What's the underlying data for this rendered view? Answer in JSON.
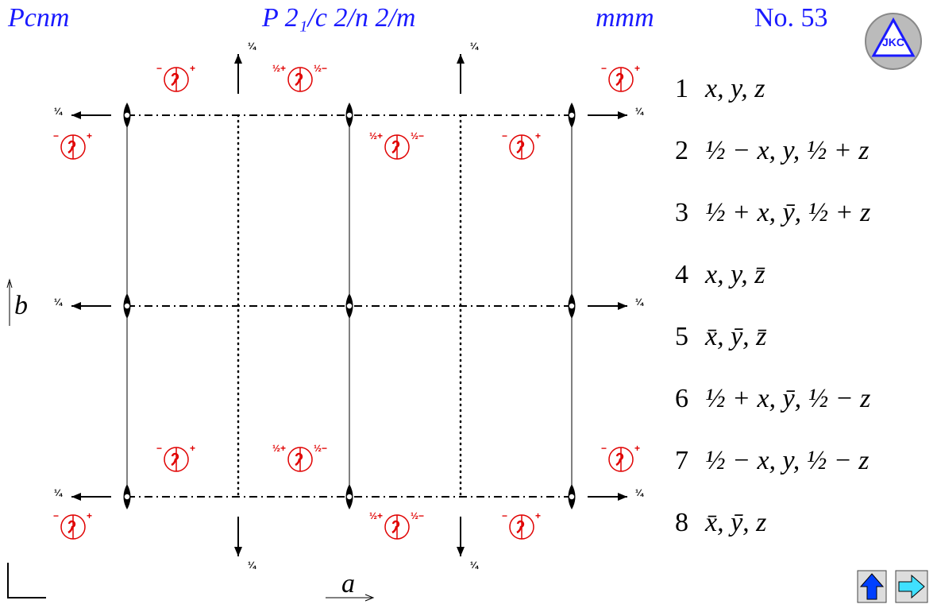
{
  "header": {
    "symbol": "Pcnm",
    "full_symbol": "P 2₁/c 2/n 2/m",
    "point_group": "mmm",
    "number": "No. 53",
    "logo": "JKC"
  },
  "diagram": {
    "axis_a": "a",
    "axis_b": "b",
    "height": "¼",
    "minus": "−",
    "plus": "+",
    "half_plus": "½+",
    "half_minus": "½−"
  },
  "positions": [
    {
      "number": "1",
      "coords": "x, y, z"
    },
    {
      "number": "2",
      "coords": "½ − x, y, ½ + z"
    },
    {
      "number": "3",
      "coords": "½ + x, ȳ, ½ + z"
    },
    {
      "number": "4",
      "coords": "x, y, z̄"
    },
    {
      "number": "5",
      "coords": "x̄, ȳ, z̄"
    },
    {
      "number": "6",
      "coords": "½ + x, ȳ, ½ − z"
    },
    {
      "number": "7",
      "coords": "½ − x, y, ½ − z"
    },
    {
      "number": "8",
      "coords": "x̄, ȳ, z"
    }
  ]
}
